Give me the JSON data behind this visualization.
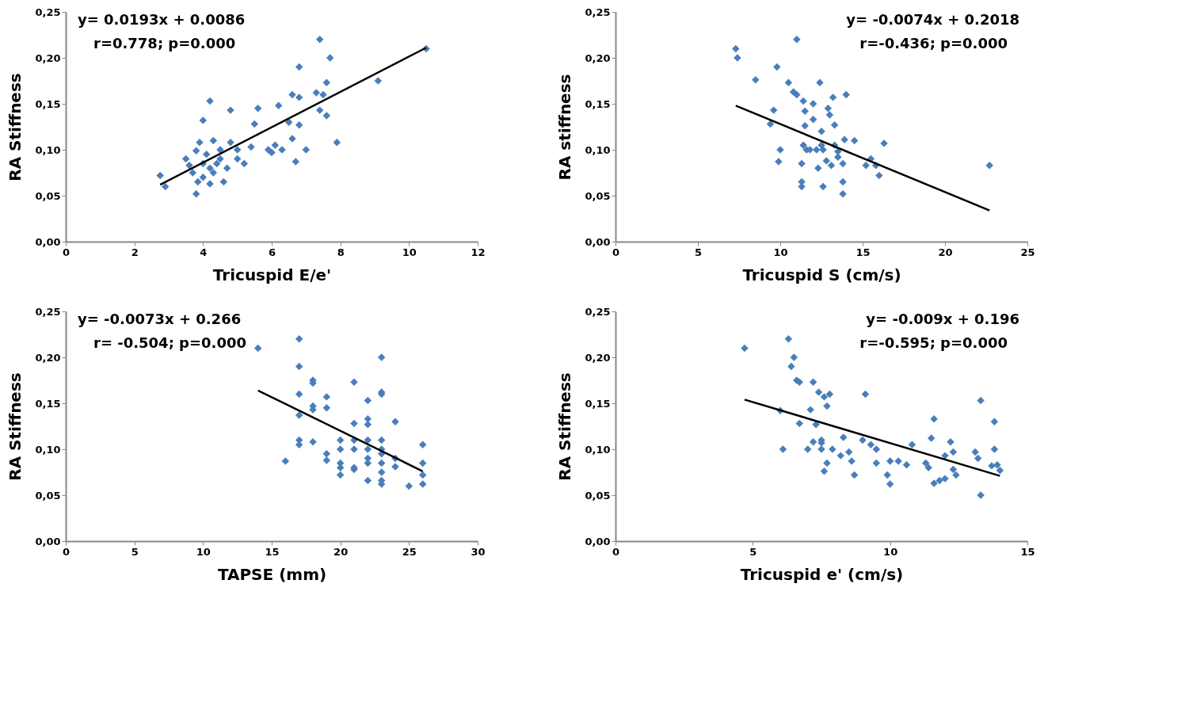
{
  "chart_data": [
    {
      "type": "scatter",
      "xlabel": "Tricuspid E/e'",
      "ylabel": "RA Stiffness",
      "annotations": [
        "y= 0.0193x + 0.0086",
        "r=0.778; p=0.000"
      ],
      "marker": "diamond",
      "legend": false,
      "grid": false,
      "xlim": [
        0,
        12
      ],
      "xticks": [
        0,
        2,
        4,
        6,
        8,
        10,
        12
      ],
      "ylim": [
        0,
        0.25
      ],
      "yticks": [
        {
          "value": 0,
          "label": "0,00"
        },
        {
          "value": 0.05,
          "label": "0,05"
        },
        {
          "value": 0.1,
          "label": "0,10"
        },
        {
          "value": 0.15,
          "label": "0,15"
        },
        {
          "value": 0.2,
          "label": "0,20"
        },
        {
          "value": 0.25,
          "label": "0,25"
        }
      ],
      "series": [
        {
          "type": "scatter",
          "color": "#4a7ebb",
          "x": [
            2.75,
            2.9,
            3.5,
            3.6,
            3.7,
            3.8,
            3.85,
            3.8,
            3.9,
            4.0,
            4.0,
            4.2,
            4.3,
            4.0,
            4.1,
            4.2,
            4.2,
            4.3,
            4.4,
            4.5,
            4.5,
            4.6,
            4.7,
            4.8,
            4.8,
            5.0,
            5.0,
            5.2,
            5.4,
            5.5,
            5.6,
            5.9,
            6.0,
            6.1,
            6.2,
            6.3,
            6.5,
            6.6,
            6.6,
            6.7,
            6.8,
            6.8,
            6.8,
            7.0,
            7.3,
            7.4,
            7.4,
            7.5,
            7.6,
            7.6,
            7.7,
            7.9,
            9.1,
            10.5
          ],
          "values": [
            0.072,
            0.06,
            0.09,
            0.083,
            0.075,
            0.099,
            0.065,
            0.052,
            0.108,
            0.132,
            0.07,
            0.153,
            0.11,
            0.085,
            0.095,
            0.08,
            0.063,
            0.075,
            0.085,
            0.1,
            0.09,
            0.065,
            0.08,
            0.143,
            0.108,
            0.1,
            0.09,
            0.085,
            0.103,
            0.128,
            0.145,
            0.1,
            0.097,
            0.105,
            0.148,
            0.1,
            0.13,
            0.112,
            0.16,
            0.087,
            0.127,
            0.157,
            0.19,
            0.1,
            0.162,
            0.143,
            0.22,
            0.16,
            0.137,
            0.173,
            0.2,
            0.108,
            0.175,
            0.21
          ]
        },
        {
          "type": "line",
          "color": "#000000",
          "marker": "none",
          "x": [
            2.75,
            10.5
          ],
          "values": [
            0.062,
            0.211
          ]
        }
      ]
    },
    {
      "type": "scatter",
      "xlabel": "Tricuspid  S (cm/s)",
      "ylabel": "RA stiffness",
      "annotations": [
        "y= -0.0074x + 0.2018",
        "r=-0.436; p=0.000"
      ],
      "marker": "diamond",
      "legend": false,
      "grid": false,
      "xlim": [
        0,
        25
      ],
      "xticks": [
        0,
        5,
        10,
        15,
        20,
        25
      ],
      "ylim": [
        0,
        0.25
      ],
      "yticks": [
        {
          "value": 0,
          "label": "0,00"
        },
        {
          "value": 0.05,
          "label": "0,05"
        },
        {
          "value": 0.1,
          "label": "0,10"
        },
        {
          "value": 0.15,
          "label": "0,15"
        },
        {
          "value": 0.2,
          "label": "0,20"
        },
        {
          "value": 0.25,
          "label": "0,25"
        }
      ],
      "series": [
        {
          "type": "scatter",
          "color": "#4a7ebb",
          "x": [
            7.3,
            7.4,
            8.5,
            9.6,
            9.4,
            9.8,
            10.0,
            9.9,
            10.5,
            10.8,
            11.0,
            11.0,
            11.4,
            11.5,
            11.5,
            11.4,
            11.3,
            11.3,
            11.3,
            11.6,
            11.8,
            12.0,
            12.0,
            12.2,
            12.3,
            12.4,
            12.5,
            12.5,
            12.6,
            12.6,
            12.8,
            12.9,
            13.0,
            13.1,
            13.2,
            13.3,
            13.3,
            13.5,
            13.5,
            13.9,
            13.8,
            13.8,
            13.8,
            14.0,
            14.5,
            15.2,
            15.5,
            15.8,
            16.0,
            16.3,
            22.7
          ],
          "values": [
            0.21,
            0.2,
            0.176,
            0.143,
            0.128,
            0.19,
            0.1,
            0.087,
            0.173,
            0.163,
            0.22,
            0.16,
            0.153,
            0.142,
            0.126,
            0.105,
            0.085,
            0.065,
            0.06,
            0.1,
            0.1,
            0.15,
            0.133,
            0.1,
            0.08,
            0.173,
            0.12,
            0.105,
            0.1,
            0.06,
            0.088,
            0.145,
            0.138,
            0.083,
            0.157,
            0.127,
            0.105,
            0.098,
            0.092,
            0.111,
            0.085,
            0.065,
            0.052,
            0.16,
            0.11,
            0.083,
            0.09,
            0.083,
            0.072,
            0.107,
            0.083
          ]
        },
        {
          "type": "line",
          "color": "#000000",
          "marker": "none",
          "x": [
            7.3,
            22.7
          ],
          "values": [
            0.148,
            0.034
          ]
        }
      ]
    },
    {
      "type": "scatter",
      "xlabel": "TAPSE (mm)",
      "ylabel": "RA Stiffness",
      "annotations": [
        "y= -0.0073x + 0.266",
        "r= -0.504; p=0.000"
      ],
      "marker": "diamond",
      "legend": false,
      "grid": false,
      "xlim": [
        0,
        30
      ],
      "xticks": [
        0,
        5,
        10,
        15,
        20,
        25,
        30
      ],
      "ylim": [
        0,
        0.25
      ],
      "yticks": [
        {
          "value": 0,
          "label": "0,00"
        },
        {
          "value": 0.05,
          "label": "0,05"
        },
        {
          "value": 0.1,
          "label": "0,10"
        },
        {
          "value": 0.15,
          "label": "0,15"
        },
        {
          "value": 0.2,
          "label": "0,20"
        },
        {
          "value": 0.25,
          "label": "0,25"
        }
      ],
      "series": [
        {
          "type": "scatter",
          "color": "#4a7ebb",
          "x": [
            14,
            16,
            17,
            17,
            17,
            17,
            17,
            17,
            18,
            18,
            18,
            18,
            18,
            19,
            19,
            19,
            19,
            20,
            20,
            20,
            20,
            20,
            21,
            21,
            21,
            21,
            21,
            21,
            22,
            22,
            22,
            22,
            22,
            22,
            22,
            22,
            23,
            23,
            23,
            23,
            23,
            23,
            23,
            23,
            23,
            23,
            24,
            24,
            24,
            25,
            26,
            26,
            26,
            26
          ],
          "values": [
            0.21,
            0.087,
            0.22,
            0.19,
            0.16,
            0.137,
            0.11,
            0.105,
            0.175,
            0.172,
            0.147,
            0.143,
            0.108,
            0.157,
            0.145,
            0.095,
            0.088,
            0.11,
            0.1,
            0.085,
            0.08,
            0.072,
            0.173,
            0.128,
            0.11,
            0.1,
            0.08,
            0.078,
            0.153,
            0.133,
            0.127,
            0.11,
            0.1,
            0.09,
            0.085,
            0.066,
            0.2,
            0.162,
            0.16,
            0.11,
            0.1,
            0.095,
            0.085,
            0.075,
            0.066,
            0.062,
            0.13,
            0.09,
            0.081,
            0.06,
            0.105,
            0.085,
            0.072,
            0.062
          ]
        },
        {
          "type": "line",
          "color": "#000000",
          "marker": "none",
          "x": [
            14,
            26
          ],
          "values": [
            0.164,
            0.076
          ]
        }
      ]
    },
    {
      "type": "scatter",
      "xlabel": "Tricuspid e' (cm/s)",
      "ylabel": "RA Stiffness",
      "annotations": [
        "y= -0.009x + 0.196",
        "r=-0.595; p=0.000"
      ],
      "marker": "diamond",
      "legend": false,
      "grid": false,
      "xlim": [
        0,
        15
      ],
      "xticks": [
        0,
        5,
        10,
        15
      ],
      "ylim": [
        0,
        0.25
      ],
      "yticks": [
        {
          "value": 0,
          "label": "0,00"
        },
        {
          "value": 0.05,
          "label": "0,05"
        },
        {
          "value": 0.1,
          "label": "0,10"
        },
        {
          "value": 0.15,
          "label": "0,15"
        },
        {
          "value": 0.2,
          "label": "0,20"
        },
        {
          "value": 0.25,
          "label": "0,25"
        }
      ],
      "series": [
        {
          "type": "scatter",
          "color": "#4a7ebb",
          "x": [
            4.7,
            6.0,
            6.1,
            6.3,
            6.4,
            6.5,
            6.6,
            6.7,
            6.7,
            7.0,
            7.1,
            7.2,
            7.2,
            7.3,
            7.4,
            7.5,
            7.5,
            7.5,
            7.6,
            7.6,
            7.7,
            7.7,
            7.8,
            7.9,
            8.2,
            8.3,
            8.5,
            8.6,
            8.7,
            9.0,
            9.1,
            9.3,
            9.5,
            9.5,
            9.9,
            10.0,
            10.0,
            10.3,
            10.6,
            10.8,
            11.3,
            11.4,
            11.5,
            11.6,
            11.6,
            11.8,
            12.0,
            12.0,
            12.2,
            12.3,
            12.3,
            12.4,
            13.1,
            13.2,
            13.3,
            13.3,
            13.7,
            13.8,
            13.8,
            13.9,
            14.0
          ],
          "values": [
            0.21,
            0.142,
            0.1,
            0.22,
            0.19,
            0.2,
            0.175,
            0.173,
            0.128,
            0.1,
            0.143,
            0.173,
            0.108,
            0.127,
            0.162,
            0.11,
            0.107,
            0.1,
            0.157,
            0.076,
            0.147,
            0.085,
            0.16,
            0.1,
            0.093,
            0.113,
            0.097,
            0.087,
            0.072,
            0.11,
            0.16,
            0.105,
            0.085,
            0.1,
            0.072,
            0.062,
            0.087,
            0.087,
            0.083,
            0.105,
            0.085,
            0.08,
            0.112,
            0.133,
            0.063,
            0.066,
            0.093,
            0.068,
            0.108,
            0.097,
            0.078,
            0.072,
            0.097,
            0.09,
            0.153,
            0.05,
            0.082,
            0.1,
            0.13,
            0.083,
            0.077
          ]
        },
        {
          "type": "line",
          "color": "#000000",
          "marker": "none",
          "x": [
            4.7,
            14
          ],
          "values": [
            0.154,
            0.071
          ]
        }
      ]
    }
  ]
}
